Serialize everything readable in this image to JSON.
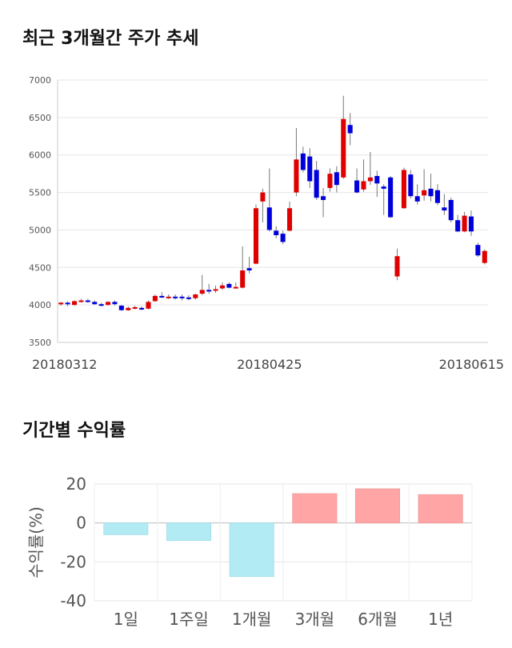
{
  "sections": {
    "price_title": "최근 3개월간 주가 추세",
    "return_title": "기간별 수익률"
  },
  "chart_data": [
    {
      "type": "candlestick",
      "ylim": [
        3500,
        7000
      ],
      "yticks": [
        3500,
        4000,
        4500,
        5000,
        5500,
        6000,
        6500,
        7000
      ],
      "xtick_labels": [
        "20180312",
        "20180425",
        "20180615"
      ],
      "xtick_index": [
        0,
        31,
        63
      ],
      "grid": true,
      "colors": {
        "up": "#e00000",
        "down": "#0000dd",
        "wick": "#777777"
      },
      "candles": [
        [
          4010,
          4030,
          3990,
          4040
        ],
        [
          4030,
          4010,
          3980,
          4050
        ],
        [
          4000,
          4050,
          3990,
          4060
        ],
        [
          4050,
          4060,
          4030,
          4080
        ],
        [
          4060,
          4050,
          4030,
          4080
        ],
        [
          4040,
          4010,
          4000,
          4060
        ],
        [
          4010,
          4000,
          3980,
          4030
        ],
        [
          4000,
          4040,
          3990,
          4050
        ],
        [
          4040,
          4010,
          3990,
          4060
        ],
        [
          3990,
          3930,
          3920,
          4000
        ],
        [
          3930,
          3960,
          3920,
          3980
        ],
        [
          3960,
          3970,
          3940,
          3990
        ],
        [
          3960,
          3940,
          3930,
          3980
        ],
        [
          3950,
          4040,
          3940,
          4060
        ],
        [
          4050,
          4120,
          4040,
          4140
        ],
        [
          4120,
          4110,
          4090,
          4170
        ],
        [
          4100,
          4110,
          4080,
          4140
        ],
        [
          4110,
          4090,
          4070,
          4140
        ],
        [
          4110,
          4090,
          4060,
          4140
        ],
        [
          4100,
          4090,
          4060,
          4130
        ],
        [
          4090,
          4140,
          4070,
          4150
        ],
        [
          4150,
          4200,
          4130,
          4400
        ],
        [
          4200,
          4180,
          4150,
          4280
        ],
        [
          4190,
          4210,
          4160,
          4260
        ],
        [
          4220,
          4260,
          4200,
          4300
        ],
        [
          4280,
          4230,
          4220,
          4300
        ],
        [
          4240,
          4240,
          4220,
          4300
        ],
        [
          4230,
          4460,
          4220,
          4780
        ],
        [
          4490,
          4460,
          4420,
          4640
        ],
        [
          4550,
          5290,
          4540,
          5340
        ],
        [
          5380,
          5500,
          5100,
          5550
        ],
        [
          5300,
          5000,
          4980,
          5820
        ],
        [
          4990,
          4930,
          4890,
          5050
        ],
        [
          4950,
          4840,
          4810,
          4990
        ],
        [
          4990,
          5290,
          4980,
          5380
        ],
        [
          5500,
          5940,
          5450,
          6360
        ],
        [
          6020,
          5800,
          5770,
          6110
        ],
        [
          5980,
          5650,
          5560,
          6090
        ],
        [
          5800,
          5430,
          5400,
          5920
        ],
        [
          5450,
          5400,
          5170,
          5560
        ],
        [
          5560,
          5750,
          5510,
          5820
        ],
        [
          5770,
          5600,
          5500,
          5850
        ],
        [
          5700,
          6480,
          5680,
          6790
        ],
        [
          6400,
          6290,
          6130,
          6560
        ],
        [
          5660,
          5500,
          5490,
          5820
        ],
        [
          5540,
          5650,
          5510,
          5940
        ],
        [
          5650,
          5700,
          5600,
          6040
        ],
        [
          5720,
          5620,
          5440,
          5790
        ],
        [
          5580,
          5550,
          5200,
          5610
        ],
        [
          5700,
          5170,
          5160,
          5720
        ],
        [
          4380,
          4650,
          4330,
          4750
        ],
        [
          5290,
          5800,
          5280,
          5830
        ],
        [
          5740,
          5450,
          5420,
          5800
        ],
        [
          5450,
          5380,
          5340,
          5610
        ],
        [
          5460,
          5530,
          5390,
          5810
        ],
        [
          5550,
          5450,
          5380,
          5750
        ],
        [
          5530,
          5360,
          5330,
          5610
        ],
        [
          5300,
          5260,
          5200,
          5480
        ],
        [
          5400,
          5130,
          5100,
          5430
        ],
        [
          5130,
          4980,
          4970,
          5200
        ],
        [
          4980,
          5190,
          4970,
          5240
        ],
        [
          5180,
          4980,
          4920,
          5260
        ],
        [
          4800,
          4660,
          4640,
          4830
        ],
        [
          4560,
          4720,
          4540,
          4740
        ]
      ]
    },
    {
      "type": "bar",
      "categories": [
        "1일",
        "1주일",
        "1개월",
        "3개월",
        "6개월",
        "1년"
      ],
      "values": [
        -6,
        -9,
        -27.5,
        15,
        17.5,
        14.5
      ],
      "ylabel": "수익률(%)",
      "ylim": [
        -40,
        20
      ],
      "yticks": [
        -40,
        -20,
        0,
        20
      ],
      "grid": true,
      "colors": {
        "positive": "#ffa5a5",
        "negative": "#b3ebf5"
      }
    }
  ]
}
